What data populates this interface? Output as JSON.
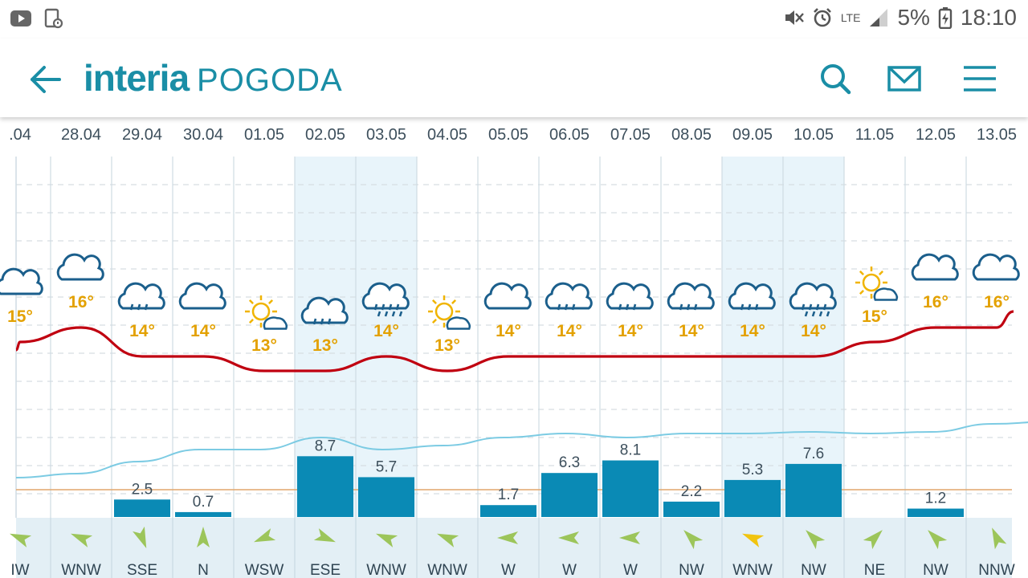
{
  "status_bar": {
    "network": "LTE",
    "battery": "5%",
    "time": "18:10"
  },
  "header": {
    "brand": "interia",
    "section": "POGODA"
  },
  "icons": {
    "back": "arrow-left-icon",
    "search": "search-icon",
    "mail": "mail-icon",
    "menu": "hamburger-menu-icon"
  },
  "colors": {
    "brand": "#1a8ea6",
    "temperature_line": "#c00010",
    "precip_bar": "#0a8ab5",
    "humidity_line": "#7ccbe3",
    "temp_label": "#e3a100",
    "weekend_band": "#e8f4fa",
    "wind_arrow": "#9cc55a",
    "wind_arrow_alt": "#f1c40f"
  },
  "forecast": {
    "days": [
      {
        "date": ".04",
        "icon": "cloud-icon",
        "temp": "15°",
        "precip": "",
        "wind": "IW",
        "weekend": false
      },
      {
        "date": "28.04",
        "icon": "cloud-icon",
        "temp": "16°",
        "precip": "",
        "wind": "WNW",
        "weekend": false
      },
      {
        "date": "29.04",
        "icon": "cloud-rain-icon",
        "temp": "14°",
        "precip": "2.5",
        "wind": "SSE",
        "weekend": false
      },
      {
        "date": "30.04",
        "icon": "cloud-icon",
        "temp": "14°",
        "precip": "0.7",
        "wind": "N",
        "weekend": false
      },
      {
        "date": "01.05",
        "icon": "sun-cloud-icon",
        "temp": "13°",
        "precip": "",
        "wind": "WSW",
        "weekend": false
      },
      {
        "date": "02.05",
        "icon": "cloud-rain-icon",
        "temp": "13°",
        "precip": "8.7",
        "wind": "ESE",
        "weekend": true
      },
      {
        "date": "03.05",
        "icon": "cloud-heavy-rain-icon",
        "temp": "14°",
        "precip": "5.7",
        "wind": "WNW",
        "weekend": true
      },
      {
        "date": "04.05",
        "icon": "sun-cloud-icon",
        "temp": "13°",
        "precip": "",
        "wind": "WNW",
        "weekend": false
      },
      {
        "date": "05.05",
        "icon": "cloud-icon",
        "temp": "14°",
        "precip": "1.7",
        "wind": "W",
        "weekend": false
      },
      {
        "date": "06.05",
        "icon": "cloud-rain-icon",
        "temp": "14°",
        "precip": "6.3",
        "wind": "W",
        "weekend": false
      },
      {
        "date": "07.05",
        "icon": "cloud-rain-icon",
        "temp": "14°",
        "precip": "8.1",
        "wind": "W",
        "weekend": false
      },
      {
        "date": "08.05",
        "icon": "cloud-rain-icon",
        "temp": "14°",
        "precip": "2.2",
        "wind": "NW",
        "weekend": false
      },
      {
        "date": "09.05",
        "icon": "cloud-rain-icon",
        "temp": "14°",
        "precip": "5.3",
        "wind": "WNW",
        "weekend": true
      },
      {
        "date": "10.05",
        "icon": "cloud-heavy-rain-icon",
        "temp": "14°",
        "precip": "7.6",
        "wind": "NW",
        "weekend": true
      },
      {
        "date": "11.05",
        "icon": "sun-cloud-icon",
        "temp": "15°",
        "precip": "",
        "wind": "NE",
        "weekend": false
      },
      {
        "date": "12.05",
        "icon": "cloud-icon",
        "temp": "16°",
        "precip": "1.2",
        "wind": "NW",
        "weekend": false
      },
      {
        "date": "13.05",
        "icon": "cloud-icon",
        "temp": "16°",
        "precip": "",
        "wind": "NNW",
        "weekend": false
      }
    ]
  }
}
